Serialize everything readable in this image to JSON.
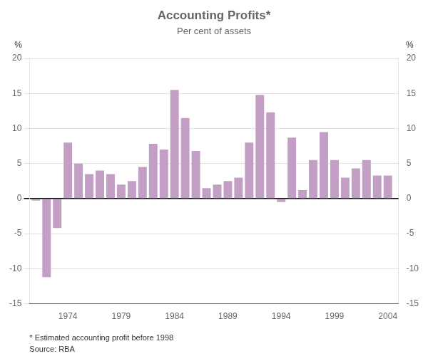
{
  "chart_data": {
    "type": "bar",
    "title": "Accounting Profits*",
    "subtitle": "Per cent of assets",
    "ylabel": "%",
    "y2label": "%",
    "annotations": [
      "* Estimated accounting profit before 1998",
      "Source: RBA"
    ],
    "x": [
      1971,
      1972,
      1973,
      1974,
      1975,
      1976,
      1977,
      1978,
      1979,
      1980,
      1981,
      1982,
      1983,
      1984,
      1985,
      1986,
      1987,
      1988,
      1989,
      1990,
      1991,
      1992,
      1993,
      1994,
      1995,
      1996,
      1997,
      1998,
      1999,
      2000,
      2001,
      2002,
      2003,
      2004
    ],
    "values": [
      -0.3,
      -11.2,
      -4.2,
      8.0,
      5.0,
      3.5,
      4.0,
      3.5,
      2.0,
      2.5,
      4.5,
      7.8,
      7.0,
      15.5,
      11.5,
      6.8,
      1.5,
      2.0,
      2.5,
      3.0,
      8.0,
      14.8,
      12.3,
      -0.5,
      8.7,
      1.2,
      5.5,
      9.5,
      5.5,
      3.0,
      4.3,
      5.5,
      3.3,
      3.3
    ],
    "color": "#c49fc5",
    "xlim": [
      1970.4,
      2005.0
    ],
    "xticks": [
      1974,
      1979,
      1984,
      1989,
      1994,
      1999,
      2004
    ],
    "ylim": [
      -15,
      20
    ],
    "yticks": [
      -15,
      -10,
      -5,
      0,
      5,
      10,
      15,
      20
    ],
    "y2lim": [
      -15,
      20
    ],
    "y2ticks": [
      -15,
      -10,
      -5,
      0,
      5,
      10,
      15,
      20
    ],
    "grid": true
  }
}
